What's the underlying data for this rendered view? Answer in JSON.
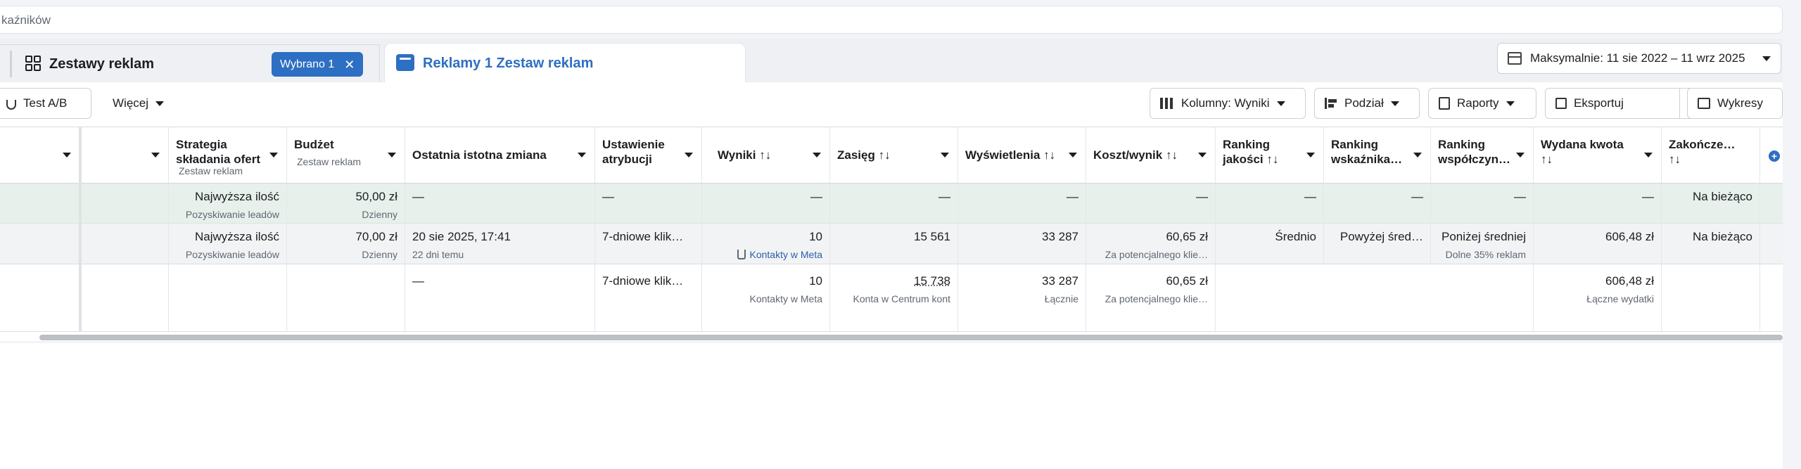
{
  "search": {
    "text": "kaźników"
  },
  "tabs": {
    "adsets_title": "Zestawy reklam",
    "selected_chip": "Wybrano 1",
    "ads_title": "Reklamy 1 Zestaw reklam",
    "date_range": "Maksymalnie: 11 sie 2022 – 11 wrz 2025"
  },
  "toolbar": {
    "ab_test": "Test A/B",
    "more": "Więcej",
    "columns": "Kolumny: Wyniki",
    "breakdown": "Podział",
    "reports": "Raporty",
    "export": "Eksportuj",
    "charts": "Wykresy"
  },
  "table": {
    "headers": {
      "strategy": "Strategia składania ofert",
      "strategy_sub": "Zestaw reklam",
      "budget": "Budżet",
      "budget_sub": "Zestaw reklam",
      "last_change": "Ostatnia istotna zmiana",
      "attribution": "Ustawienie atrybucji",
      "results": "Wyniki ↑↓",
      "reach": "Zasięg ↑↓",
      "impressions": "Wyświetlenia ↑↓",
      "cost": "Koszt/wynik ↑↓",
      "quality": "Ranking jakości ↑↓",
      "engagement": "Ranking wskaźnika…",
      "conversion": "Ranking współczyn…",
      "spent": "Wydana kwota ↑↓",
      "ends": "Zakończe… ↑↓"
    },
    "rows": [
      {
        "strategy": "Najwyższa ilość",
        "strategy_sub": "Pozyskiwanie leadów",
        "budget": "50,00 zł",
        "budget_sub": "Dzienny",
        "last_change": "—",
        "attribution": "—",
        "results": "—",
        "reach": "—",
        "impressions": "—",
        "cost": "—",
        "quality": "—",
        "engagement": "—",
        "conversion": "—",
        "spent": "—",
        "ends": "Na bieżąco"
      },
      {
        "strategy": "Najwyższa ilość",
        "strategy_sub": "Pozyskiwanie leadów",
        "budget": "70,00 zł",
        "budget_sub": "Dzienny",
        "last_change": "20 sie 2025, 17:41",
        "last_change_sub": "22 dni temu",
        "attribution": "7-dniowe klik…",
        "results": "10",
        "results_sub": "Kontakty w Meta",
        "reach": "15 561",
        "impressions": "33 287",
        "cost": "60,65 zł",
        "cost_sub": "Za potencjalnego klie…",
        "quality": "Średnio",
        "engagement": "Powyżej śred…",
        "conversion": "Poniżej średniej",
        "conversion_sub": "Dolne 35% reklam",
        "spent": "606,48 zł",
        "ends": "Na bieżąco"
      }
    ],
    "totals": {
      "last_change": "—",
      "attribution": "7-dniowe klik…",
      "results": "10",
      "results_sub": "Kontakty w Meta",
      "reach": "15 738",
      "reach_sub": "Konta w Centrum kont",
      "impressions": "33 287",
      "impressions_sub": "Łącznie",
      "cost": "60,65 zł",
      "cost_sub": "Za potencjalnego klie…",
      "spent": "606,48 zł",
      "spent_sub": "Łączne wydatki"
    }
  },
  "colors": {
    "accent": "#2d6fc2",
    "selected_row": "#e8f0ec"
  }
}
